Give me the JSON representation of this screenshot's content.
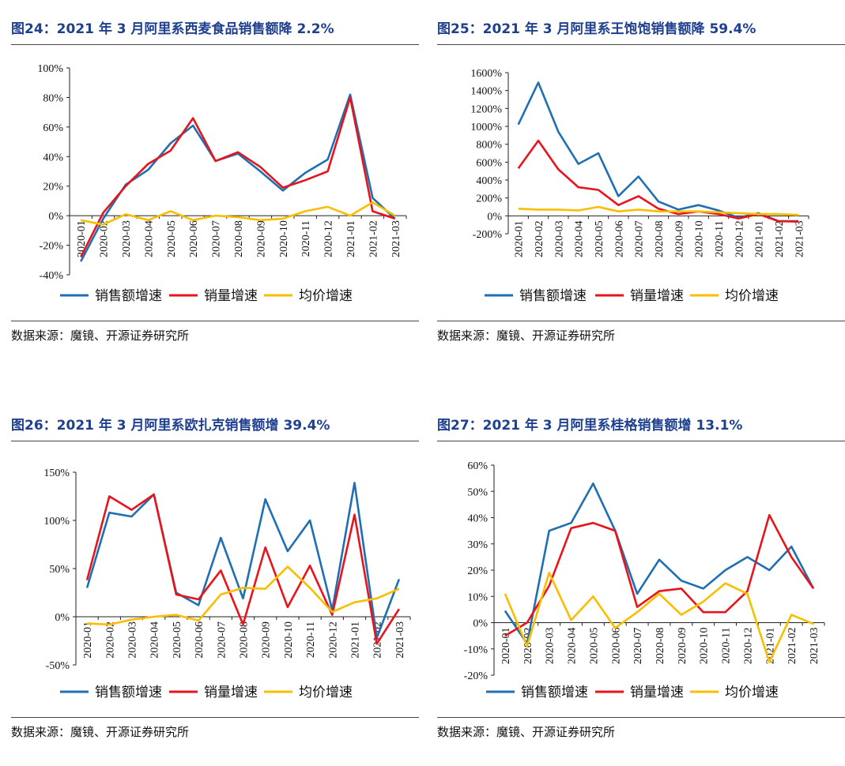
{
  "source_label": "数据来源：魔镜、开源证券研究所",
  "legend_labels": [
    "销售额增速",
    "销量增速",
    "均价增速"
  ],
  "series_colors": [
    "#1f6fb4",
    "#e8141c",
    "#f9be00"
  ],
  "chart_data": [
    {
      "type": "line",
      "title": "图24：2021 年 3 月阿里系西麦食品销售额降 2.2%",
      "categories": [
        "2020-01",
        "2020-02",
        "2020-03",
        "2020-04",
        "2020-05",
        "2020-06",
        "2020-07",
        "2020-08",
        "2020-09",
        "2020-10",
        "2020-11",
        "2020-12",
        "2021-01",
        "2021-02",
        "2021-03"
      ],
      "ylim": [
        -40,
        100
      ],
      "yticks": [
        -40,
        -20,
        0,
        20,
        40,
        60,
        80,
        100
      ],
      "yticklabels": [
        "-40%",
        "-20%",
        "0%",
        "20%",
        "40%",
        "60%",
        "80%",
        "100%"
      ],
      "series": [
        {
          "name": "销售额增速",
          "values": [
            -31,
            -2,
            21,
            31,
            49,
            61,
            37,
            42,
            30,
            17,
            29,
            38,
            82,
            12,
            -2
          ]
        },
        {
          "name": "销量增速",
          "values": [
            -28,
            2,
            20,
            35,
            44,
            66,
            37,
            43,
            33,
            19,
            24,
            30,
            80,
            3,
            -2
          ]
        },
        {
          "name": "均价增速",
          "values": [
            -3,
            -6,
            1,
            -3,
            3,
            -3,
            0,
            -1,
            -3,
            -2,
            3,
            6,
            0,
            9,
            0
          ]
        }
      ]
    },
    {
      "type": "line",
      "title": "图25：2021 年 3 月阿里系王饱饱销售额降 59.4%",
      "categories": [
        "2020-01",
        "2020-02",
        "2020-03",
        "2020-04",
        "2020-05",
        "2020-06",
        "2020-07",
        "2020-08",
        "2020-09",
        "2020-10",
        "2020-11",
        "2020-12",
        "2021-01",
        "2021-02",
        "2021-03"
      ],
      "ylim": [
        -200,
        1600
      ],
      "yticks": [
        -200,
        0,
        200,
        400,
        600,
        800,
        1000,
        1200,
        1400,
        1600
      ],
      "yticklabels": [
        "-200%",
        "0%",
        "200%",
        "400%",
        "600%",
        "800%",
        "1000%",
        "1200%",
        "1400%",
        "1600%"
      ],
      "series": [
        {
          "name": "销售额增速",
          "values": [
            1020,
            1490,
            940,
            580,
            700,
            220,
            440,
            160,
            70,
            120,
            60,
            -20,
            30,
            -60,
            -59
          ]
        },
        {
          "name": "销量增速",
          "values": [
            530,
            840,
            520,
            320,
            290,
            120,
            220,
            80,
            20,
            50,
            20,
            -30,
            20,
            -60,
            -65
          ]
        },
        {
          "name": "均价增速",
          "values": [
            80,
            70,
            70,
            60,
            100,
            50,
            70,
            50,
            50,
            50,
            40,
            30,
            20,
            20,
            10
          ]
        }
      ]
    },
    {
      "type": "line",
      "title": "图26：2021 年 3 月阿里系欧扎克销售额增 39.4%",
      "categories": [
        "2020-01",
        "2020-02",
        "2020-03",
        "2020-04",
        "2020-05",
        "2020-06",
        "2020-07",
        "2020-08",
        "2020-09",
        "2020-10",
        "2020-11",
        "2020-12",
        "2021-01",
        "2021-02",
        "2021-03"
      ],
      "ylim": [
        -50,
        150
      ],
      "yticks": [
        -50,
        0,
        50,
        100,
        150
      ],
      "yticklabels": [
        "-50%",
        "0%",
        "50%",
        "100%",
        "150%"
      ],
      "series": [
        {
          "name": "销售额增速",
          "values": [
            30,
            108,
            104,
            127,
            25,
            12,
            82,
            19,
            122,
            68,
            100,
            7,
            139,
            -22,
            39
          ]
        },
        {
          "name": "销量增速",
          "values": [
            38,
            125,
            111,
            127,
            23,
            18,
            48,
            -8,
            72,
            10,
            53,
            2,
            106,
            -28,
            8
          ]
        },
        {
          "name": "均价增速",
          "values": [
            -7,
            -8,
            -3,
            0,
            2,
            -4,
            23,
            30,
            29,
            52,
            30,
            5,
            15,
            19,
            29
          ]
        }
      ]
    },
    {
      "type": "line",
      "title": "图27：2021 年 3 月阿里系桂格销售额增 13.1%",
      "categories": [
        "2020-01",
        "2020-02",
        "2020-03",
        "2020-04",
        "2020-05",
        "2020-06",
        "2020-07",
        "2020-08",
        "2020-09",
        "2020-10",
        "2020-11",
        "2020-12",
        "2021-01",
        "2021-02",
        "2021-03"
      ],
      "ylim": [
        -20,
        60
      ],
      "yticks": [
        -20,
        -10,
        0,
        10,
        20,
        30,
        40,
        50,
        60
      ],
      "yticklabels": [
        "-20%",
        "-10%",
        "0%",
        "10%",
        "20%",
        "30%",
        "40%",
        "50%",
        "60%"
      ],
      "series": [
        {
          "name": "销售额增速",
          "values": [
            4.5,
            -8,
            35,
            38,
            53,
            35,
            11,
            24,
            16,
            13,
            20,
            25,
            20,
            29,
            13
          ]
        },
        {
          "name": "销量增速",
          "values": [
            -5,
            0,
            14,
            36,
            38,
            35,
            6,
            12,
            13,
            4,
            4,
            12,
            41,
            25,
            13
          ]
        },
        {
          "name": "均价增速",
          "values": [
            11,
            -9,
            19,
            1,
            10,
            -2,
            4,
            11,
            3,
            8,
            15,
            11,
            -15,
            3,
            -0.5
          ]
        }
      ]
    }
  ]
}
